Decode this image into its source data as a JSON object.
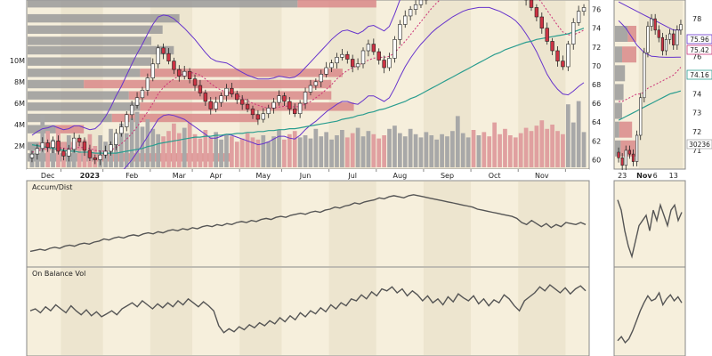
{
  "colors": {
    "panel_bg": "#f6efdc",
    "band_alt": "#ede5cf",
    "up_candle": "#ffffff",
    "down_candle": "#cc3344",
    "candle_outline": "#222222",
    "bollinger": "#6633cc",
    "sma_short": "#cc3377",
    "sma_long": "#2a9d8f",
    "vbp_up": "#9a9a9a",
    "vbp_down": "#d98a8a",
    "volume_up": "#a8a8a8",
    "volume_down": "#e0a0a0",
    "indicator_line": "#555555",
    "axis_text": "#222222",
    "panel_border": "#888888"
  },
  "chart_data": [
    {
      "type": "candlestick",
      "panel": "price-main",
      "x_labels": [
        "Dec",
        "2023",
        "Feb",
        "Mar",
        "Apr",
        "May",
        "Jun",
        "Jul",
        "Aug",
        "Sep",
        "Oct",
        "Nov"
      ],
      "y_ticks": [
        "60",
        "62",
        "64",
        "66",
        "68",
        "70",
        "72",
        "74",
        "76"
      ],
      "y_range": [
        59,
        77
      ],
      "volume_ticks": [
        "2M",
        "4M",
        "6M",
        "8M",
        "10M"
      ],
      "close": [
        60.6,
        61.2,
        61.8,
        61.3,
        62.0,
        60.9,
        60.4,
        61.1,
        62.3,
        61.9,
        61.0,
        60.2,
        60.0,
        60.5,
        60.9,
        61.6,
        62.8,
        63.5,
        64.8,
        65.8,
        66.6,
        67.4,
        68.7,
        70.2,
        71.9,
        71.3,
        70.5,
        69.6,
        68.9,
        69.4,
        68.6,
        67.9,
        67.1,
        66.2,
        65.4,
        66.1,
        66.8,
        67.6,
        67.0,
        66.4,
        65.9,
        65.4,
        64.8,
        64.3,
        64.9,
        65.5,
        66.1,
        66.8,
        66.2,
        65.4,
        64.9,
        66.0,
        67.2,
        67.9,
        68.3,
        69.1,
        69.8,
        70.3,
        70.9,
        71.2,
        70.7,
        69.9,
        70.2,
        71.6,
        72.3,
        71.5,
        70.6,
        69.8,
        70.8,
        72.8,
        74.4,
        75.3,
        76.0,
        76.5,
        77.0,
        77.6,
        78.2,
        78.5,
        78.7,
        78.9,
        79.1,
        79.3,
        79.5,
        79.7,
        79.6,
        79.8,
        79.7,
        79.6,
        79.4,
        79.2,
        79.0,
        78.8,
        78.4,
        77.9,
        77.0,
        76.2,
        75.2,
        74.0,
        72.6,
        71.6,
        70.5,
        69.9,
        72.3,
        74.6,
        75.8,
        76.2
      ],
      "bollinger_upper": [
        62.6,
        63.0,
        63.3,
        63.4,
        63.6,
        63.4,
        63.2,
        63.3,
        63.6,
        63.6,
        63.4,
        63.2,
        63.3,
        63.8,
        64.6,
        65.6,
        66.8,
        67.8,
        69.0,
        70.2,
        71.3,
        72.3,
        73.4,
        74.4,
        75.2,
        75.4,
        75.3,
        75.0,
        74.5,
        74.0,
        73.4,
        72.8,
        72.1,
        71.4,
        70.8,
        70.5,
        70.4,
        70.3,
        70.0,
        69.6,
        69.3,
        69.0,
        68.8,
        68.6,
        68.6,
        68.6,
        68.7,
        68.9,
        68.8,
        68.7,
        68.8,
        69.2,
        69.8,
        70.4,
        71.0,
        71.6,
        72.2,
        72.8,
        73.3,
        73.7,
        73.8,
        73.6,
        73.4,
        73.7,
        74.2,
        74.3,
        74.0,
        73.7,
        74.2,
        75.5,
        77.0,
        78.3,
        79.4,
        80.2,
        80.8,
        81.2,
        81.5,
        81.6,
        81.7,
        81.7,
        81.8,
        81.8,
        81.9,
        82.0,
        82.0,
        82.0,
        82.0,
        81.9,
        81.8,
        81.7,
        81.6,
        81.5,
        81.5,
        81.6,
        81.8,
        81.9,
        82.0,
        82.1,
        81.9,
        81.2,
        80.3,
        79.4,
        78.8,
        78.6,
        78.5,
        78.4
      ],
      "bollinger_lower": [
        58.6,
        58.6,
        58.6,
        58.7,
        58.8,
        58.7,
        58.6,
        58.5,
        58.5,
        58.4,
        58.2,
        58.0,
        57.8,
        57.8,
        57.9,
        58.0,
        58.3,
        58.7,
        59.3,
        60.0,
        60.8,
        61.6,
        62.5,
        63.4,
        64.3,
        64.7,
        64.8,
        64.7,
        64.5,
        64.3,
        63.9,
        63.5,
        63.1,
        62.7,
        62.3,
        62.3,
        62.5,
        62.7,
        62.6,
        62.4,
        62.2,
        62.0,
        61.8,
        61.6,
        61.7,
        61.9,
        62.2,
        62.5,
        62.5,
        62.3,
        62.2,
        62.6,
        63.2,
        63.7,
        64.1,
        64.6,
        65.1,
        65.5,
        65.9,
        66.2,
        66.2,
        66.0,
        65.9,
        66.3,
        66.8,
        66.8,
        66.5,
        66.2,
        66.6,
        67.6,
        68.8,
        69.9,
        70.8,
        71.6,
        72.3,
        72.9,
        73.5,
        74.0,
        74.4,
        74.8,
        75.2,
        75.5,
        75.8,
        76.0,
        76.1,
        76.2,
        76.2,
        76.2,
        76.0,
        75.8,
        75.5,
        75.2,
        74.8,
        74.2,
        73.4,
        72.5,
        71.5,
        70.3,
        69.1,
        68.2,
        67.5,
        67.0,
        66.9,
        67.3,
        67.8,
        68.2
      ],
      "sma_short": [
        60.8,
        60.9,
        61.1,
        61.2,
        61.3,
        61.3,
        61.2,
        61.2,
        61.3,
        61.3,
        61.3,
        61.2,
        61.0,
        60.9,
        60.9,
        61.0,
        61.3,
        61.7,
        62.2,
        62.8,
        63.5,
        64.3,
        65.1,
        66.0,
        67.0,
        67.7,
        68.2,
        68.6,
        68.9,
        69.2,
        69.3,
        69.2,
        69.0,
        68.6,
        68.1,
        67.7,
        67.4,
        67.2,
        67.0,
        66.9,
        66.6,
        66.3,
        66.0,
        65.8,
        65.6,
        65.5,
        65.5,
        65.6,
        65.7,
        65.7,
        65.6,
        65.7,
        65.9,
        66.2,
        66.6,
        67.0,
        67.5,
        68.0,
        68.6,
        69.1,
        69.5,
        69.8,
        70.0,
        70.3,
        70.6,
        70.8,
        70.9,
        70.9,
        71.0,
        71.4,
        72.0,
        72.6,
        73.3,
        74.0,
        74.7,
        75.4,
        76.1,
        76.7,
        77.2,
        77.7,
        78.1,
        78.5,
        78.8,
        79.1,
        79.3,
        79.4,
        79.5,
        79.6,
        79.6,
        79.6,
        79.5,
        79.4,
        79.2,
        78.9,
        78.5,
        78.0,
        77.4,
        76.7,
        75.9,
        75.1,
        74.3,
        73.6,
        73.3,
        73.3,
        73.5,
        73.8
      ],
      "sma_long": [
        61.6,
        61.5,
        61.4,
        61.3,
        61.2,
        61.1,
        61.0,
        60.9,
        60.9,
        60.8,
        60.8,
        60.8,
        60.7,
        60.7,
        60.7,
        60.7,
        60.7,
        60.8,
        60.9,
        61.0,
        61.1,
        61.2,
        61.4,
        61.5,
        61.7,
        61.8,
        61.9,
        62.0,
        62.1,
        62.2,
        62.3,
        62.4,
        62.4,
        62.5,
        62.5,
        62.6,
        62.6,
        62.7,
        62.7,
        62.8,
        62.8,
        62.9,
        62.9,
        63.0,
        63.0,
        63.1,
        63.1,
        63.2,
        63.2,
        63.3,
        63.3,
        63.4,
        63.5,
        63.6,
        63.7,
        63.8,
        63.9,
        64.0,
        64.1,
        64.3,
        64.4,
        64.5,
        64.7,
        64.8,
        65.0,
        65.1,
        65.3,
        65.4,
        65.6,
        65.8,
        66.0,
        66.2,
        66.5,
        66.7,
        67.0,
        67.3,
        67.6,
        67.9,
        68.2,
        68.5,
        68.8,
        69.1,
        69.4,
        69.7,
        70.0,
        70.3,
        70.6,
        70.9,
        71.2,
        71.4,
        71.7,
        71.9,
        72.1,
        72.3,
        72.5,
        72.6,
        72.8,
        72.9,
        73.0,
        73.1,
        73.2,
        73.3,
        73.4,
        73.6,
        73.8,
        74.0
      ],
      "volume_mil": [
        1.6,
        2.2,
        4.9,
        3.4,
        2.6,
        3.6,
        2.3,
        3.0,
        2.1,
        2.5,
        2.6,
        3.1,
        2.0,
        3.0,
        2.4,
        3.6,
        2.8,
        4.1,
        3.2,
        4.6,
        5.2,
        3.8,
        4.5,
        3.6,
        3.1,
        2.9,
        3.4,
        4.1,
        3.2,
        3.7,
        4.2,
        3.1,
        2.7,
        3.5,
        2.8,
        3.3,
        2.6,
        3.1,
        2.9,
        2.4,
        2.7,
        3.2,
        2.8,
        2.6,
        3.0,
        2.4,
        2.9,
        3.5,
        2.6,
        3.1,
        3.4,
        2.8,
        3.0,
        2.7,
        3.6,
        2.9,
        3.3,
        2.6,
        3.0,
        3.5,
        2.8,
        3.2,
        3.7,
        2.9,
        3.4,
        3.1,
        2.7,
        3.0,
        3.6,
        3.9,
        3.2,
        2.9,
        3.6,
        3.1,
        2.8,
        3.3,
        3.0,
        2.6,
        3.1,
        2.9,
        3.4,
        4.8,
        3.2,
        2.8,
        3.5,
        3.0,
        3.3,
        2.9,
        4.2,
        3.1,
        3.6,
        3.0,
        2.8,
        3.2,
        3.7,
        3.4,
        3.9,
        4.4,
        3.6,
        4.0,
        3.4,
        3.1,
        5.9,
        4.2,
        6.2,
        3.3
      ],
      "volume_by_price": [
        {
          "price": 76.6,
          "up": 0.48,
          "down": 0.14
        },
        {
          "price": 75.0,
          "up": 0.27,
          "down": 0.0
        },
        {
          "price": 73.8,
          "up": 0.24,
          "down": 0.0
        },
        {
          "price": 72.6,
          "up": 0.22,
          "down": 0.0
        },
        {
          "price": 71.6,
          "up": 0.26,
          "down": 0.0
        },
        {
          "price": 70.4,
          "up": 0.22,
          "down": 0.0
        },
        {
          "price": 69.2,
          "up": 0.2,
          "down": 0.36
        },
        {
          "price": 68.0,
          "up": 0.1,
          "down": 0.44
        },
        {
          "price": 66.8,
          "up": 0.18,
          "down": 0.36
        },
        {
          "price": 65.6,
          "up": 0.2,
          "down": 0.38
        },
        {
          "price": 64.4,
          "up": 0.15,
          "down": 0.26
        },
        {
          "price": 63.2,
          "up": 0.05,
          "down": 0.05
        },
        {
          "price": 61.4,
          "up": 0.02,
          "down": 0.08
        },
        {
          "price": 60.2,
          "up": 0.12,
          "down": 0.24
        }
      ]
    },
    {
      "type": "candlestick",
      "panel": "price-inset",
      "x_labels": [
        "23",
        "Nov",
        "6",
        "13"
      ],
      "y_ticks": [
        "71",
        "72",
        "73",
        "74",
        "75",
        "76",
        "77",
        "78"
      ],
      "y_range": [
        70,
        79
      ],
      "price_labels": [
        "75.96",
        "75.42",
        "74.16",
        "30236"
      ],
      "close": [
        70.6,
        70.2,
        71.0,
        70.8,
        70.4,
        71.8,
        73.8,
        76.2,
        77.6,
        78.0,
        77.4,
        77.0,
        76.3,
        76.9,
        77.2,
        76.6,
        77.4,
        77.7
      ],
      "bollinger_upper": [
        78.9,
        78.8,
        78.7,
        78.6,
        78.5,
        78.4,
        78.3,
        78.2,
        78.1,
        78.0,
        77.9,
        77.8,
        77.7,
        77.6,
        77.5,
        77.4,
        77.4,
        77.4
      ],
      "bollinger_lower": [
        77.9,
        77.7,
        77.5,
        77.2,
        76.9,
        76.6,
        76.4,
        76.2,
        76.1,
        76.0,
        75.99,
        75.97,
        75.96,
        75.95,
        75.95,
        75.95,
        75.96,
        75.96
      ],
      "sma_short": [
        73.6,
        73.6,
        73.7,
        73.8,
        73.9,
        74.0,
        74.0,
        74.1,
        74.3,
        74.4,
        74.5,
        74.6,
        74.7,
        74.8,
        74.9,
        75.0,
        75.2,
        75.42
      ],
      "sma_long": [
        72.6,
        72.7,
        72.8,
        72.9,
        73.0,
        73.1,
        73.2,
        73.3,
        73.4,
        73.5,
        73.6,
        73.7,
        73.8,
        73.9,
        74.0,
        74.05,
        74.1,
        74.16
      ]
    },
    {
      "type": "line",
      "panel": "accum-dist",
      "title": "Accum/Dist",
      "values": [
        10,
        11,
        12,
        11,
        13,
        14,
        13,
        15,
        16,
        15,
        17,
        18,
        17,
        19,
        20,
        22,
        21,
        23,
        24,
        23,
        25,
        26,
        25,
        27,
        28,
        27,
        29,
        28,
        30,
        31,
        30,
        32,
        31,
        33,
        32,
        34,
        35,
        34,
        36,
        35,
        37,
        36,
        38,
        39,
        38,
        40,
        39,
        41,
        42,
        41,
        43,
        44,
        43,
        45,
        46,
        47,
        46,
        48,
        49,
        48,
        50,
        51,
        53,
        52,
        54,
        55,
        57,
        56,
        58,
        59,
        60,
        62,
        61,
        63,
        64,
        63,
        62,
        64,
        65,
        64,
        63,
        62,
        61,
        60,
        59,
        58,
        57,
        56,
        55,
        54,
        53,
        51,
        50,
        49,
        48,
        47,
        46,
        45,
        44,
        42,
        38,
        36,
        40,
        37,
        34,
        37,
        33,
        36,
        34,
        38,
        37,
        36,
        38,
        36
      ],
      "inset_values": [
        60,
        50,
        30,
        15,
        5,
        20,
        35,
        40,
        45,
        30,
        50,
        40,
        55,
        45,
        35,
        50,
        55,
        40,
        48
      ],
      "y_range": [
        0,
        70
      ]
    },
    {
      "type": "line",
      "panel": "on-balance-volume",
      "title": "On Balance Vol",
      "values": [
        40,
        42,
        38,
        44,
        40,
        46,
        42,
        38,
        45,
        40,
        36,
        41,
        35,
        39,
        34,
        37,
        40,
        36,
        42,
        45,
        48,
        44,
        50,
        46,
        42,
        47,
        43,
        48,
        44,
        50,
        46,
        52,
        48,
        44,
        49,
        45,
        40,
        25,
        18,
        22,
        19,
        24,
        21,
        26,
        23,
        28,
        25,
        30,
        27,
        33,
        29,
        35,
        31,
        38,
        34,
        40,
        37,
        43,
        39,
        46,
        42,
        48,
        45,
        52,
        50,
        56,
        52,
        59,
        55,
        62,
        60,
        64,
        58,
        62,
        55,
        60,
        56,
        50,
        55,
        48,
        52,
        46,
        54,
        49,
        57,
        53,
        50,
        55,
        47,
        52,
        45,
        51,
        48,
        56,
        52,
        45,
        40,
        50,
        54,
        58,
        64,
        60,
        66,
        62,
        58,
        63,
        57,
        62,
        65,
        60
      ],
      "inset_values": [
        10,
        14,
        8,
        12,
        20,
        30,
        40,
        48,
        55,
        50,
        52,
        58,
        46,
        52,
        56,
        50,
        54,
        48
      ],
      "y_range": [
        0,
        75
      ]
    }
  ]
}
